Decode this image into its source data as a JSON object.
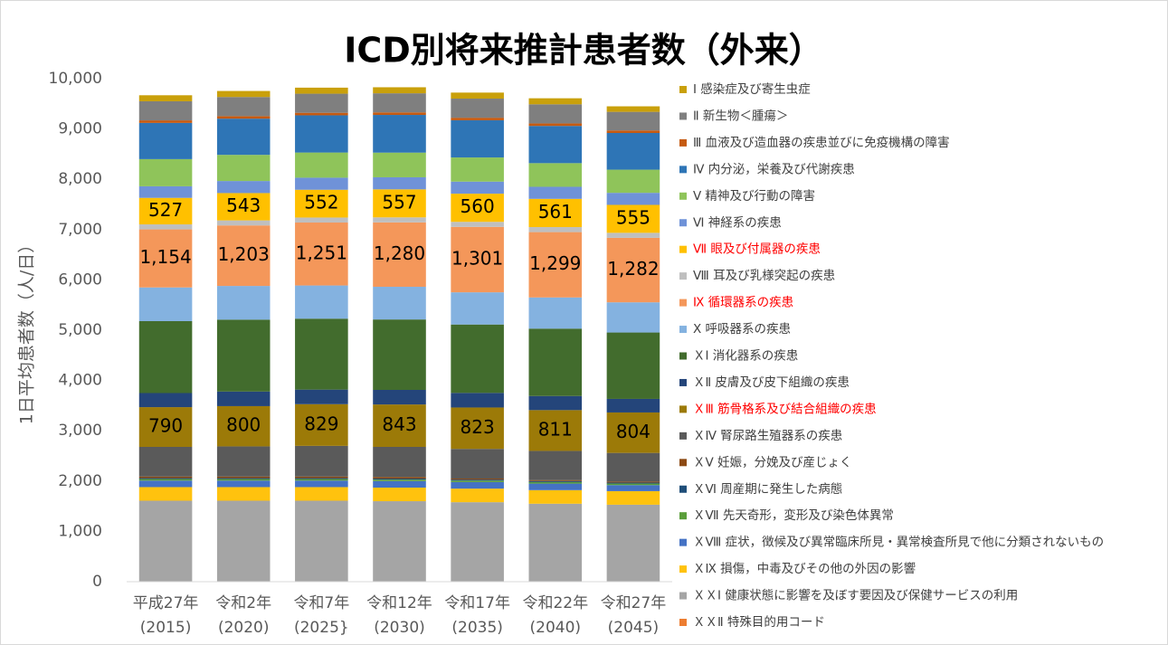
{
  "chart_data": {
    "type": "stacked_bar",
    "title": "ICD別将来推計患者数（外来）",
    "y_label": "1日平均患者数（人/日）",
    "categories": [
      [
        "平成27年",
        "(2015)"
      ],
      [
        "令和2年",
        "(2020)"
      ],
      [
        "令和7年",
        "(2025}"
      ],
      [
        "令和12年",
        "(2030)"
      ],
      [
        "令和17年",
        "(2035)"
      ],
      [
        "令和22年",
        "(2040)"
      ],
      [
        "令和27年",
        "(2045)"
      ]
    ],
    "ylim": [
      0,
      10000
    ],
    "yticks": [
      0,
      {
        "value": 1000,
        "label": "1,000"
      },
      {
        "value": 2000,
        "label": "2,000"
      },
      {
        "value": 3000,
        "label": "3,000"
      },
      {
        "value": 4000,
        "label": "4,000"
      },
      {
        "value": 5000,
        "label": "5,000"
      },
      {
        "value": 6000,
        "label": "6,000"
      },
      {
        "value": 7000,
        "label": "7,000"
      },
      {
        "value": 8000,
        "label": "8,000"
      },
      {
        "value": 9000,
        "label": "9,000"
      },
      {
        "value": 10000,
        "label": "10,000"
      }
    ],
    "grid": false,
    "legend": "right",
    "series": [
      {
        "name": "Ⅰ 感染症及び寄生虫症",
        "color": "#c9a00b",
        "values": [
          120,
          120,
          120,
          120,
          120,
          120,
          110
        ]
      },
      {
        "name": "Ⅱ 新生物＜腫瘍＞",
        "color": "#7f7f7f",
        "values": [
          380,
          380,
          380,
          380,
          380,
          380,
          370
        ]
      },
      {
        "name": "Ⅲ 血液及び造血器の疾患並びに免疫機構の障害",
        "color": "#c55a11",
        "values": [
          50,
          50,
          50,
          50,
          50,
          50,
          50
        ]
      },
      {
        "name": "Ⅳ 内分泌，栄養及び代謝疾患",
        "color": "#2e75b6",
        "values": [
          720,
          720,
          740,
          750,
          740,
          740,
          730
        ]
      },
      {
        "name": "Ⅴ 精神及び行動の障害",
        "color": "#8fc45a",
        "values": [
          540,
          520,
          500,
          490,
          480,
          470,
          460
        ]
      },
      {
        "name": "Ⅵ 神経系の疾患",
        "color": "#6f92d8",
        "values": [
          230,
          240,
          240,
          240,
          240,
          240,
          240
        ]
      },
      {
        "name": "Ⅶ 眼及び付属器の疾患",
        "color": "#ffc000",
        "legend_text_color": "#ff0000",
        "values": [
          527,
          543,
          552,
          557,
          560,
          561,
          555
        ]
      },
      {
        "name": "Ⅷ 耳及び乳様突起の疾患",
        "color": "#bfbfbf",
        "values": [
          100,
          100,
          100,
          100,
          100,
          100,
          100
        ]
      },
      {
        "name": "Ⅸ 循環器系の疾患",
        "color": "#f4975a",
        "legend_text_color": "#ff0000",
        "values": [
          1154,
          1203,
          1251,
          1280,
          1301,
          1299,
          1282
        ],
        "value_labels": [
          "1,154",
          "1,203",
          "1,251",
          "1,280",
          "1,301",
          "1,299",
          "1,282"
        ]
      },
      {
        "name": "Ⅹ 呼吸器系の疾患",
        "color": "#84b2e0",
        "values": [
          670,
          670,
          660,
          650,
          640,
          620,
          600
        ]
      },
      {
        "name": "ＸⅠ 消化器系の疾患",
        "color": "#426c2d",
        "values": [
          1430,
          1430,
          1410,
          1400,
          1360,
          1340,
          1320
        ]
      },
      {
        "name": "ＸⅡ 皮膚及び皮下組織の疾患",
        "color": "#24457a",
        "values": [
          280,
          290,
          290,
          290,
          290,
          280,
          270
        ]
      },
      {
        "name": "ＸⅢ 筋骨格系及び結合組織の疾患",
        "color": "#9c7a08",
        "legend_text_color": "#ff0000",
        "values": [
          790,
          800,
          829,
          843,
          823,
          811,
          804
        ]
      },
      {
        "name": "ＸⅣ 腎尿路生殖器系の疾患",
        "color": "#5a5a5a",
        "values": [
          590,
          600,
          610,
          600,
          590,
          580,
          570
        ]
      },
      {
        "name": "ＸⅤ 妊娠，分娩及び産じょく",
        "color": "#8c4a14",
        "values": [
          30,
          30,
          30,
          30,
          20,
          20,
          20
        ]
      },
      {
        "name": "ＸⅥ 周産期に発生した病態",
        "color": "#1f4e79",
        "values": [
          20,
          20,
          20,
          20,
          20,
          20,
          20
        ]
      },
      {
        "name": "ＸⅦ 先天奇形，変形及び染色体異常",
        "color": "#5a9e3a",
        "values": [
          30,
          30,
          30,
          30,
          30,
          30,
          30
        ]
      },
      {
        "name": "ＸⅧ 症状，徴候及び異常臨床所見・異常検査所見で他に分類されないもの",
        "color": "#4472c4",
        "values": [
          130,
          130,
          130,
          130,
          130,
          130,
          120
        ]
      },
      {
        "name": "ＸⅨ 損傷，中毒及びその他の外因の影響",
        "color": "#ffc20e",
        "values": [
          270,
          270,
          270,
          270,
          270,
          270,
          270
        ]
      },
      {
        "name": "ＸＸⅠ 健康状態に影響を及ぼす要因及び保健サービスの利用",
        "color": "#a5a5a5",
        "values": [
          1610,
          1610,
          1610,
          1600,
          1580,
          1550,
          1530
        ]
      },
      {
        "name": "ＸＸⅡ 特殊目的用コード",
        "color": "#ed7d31",
        "values": [
          0,
          0,
          0,
          0,
          0,
          0,
          0
        ]
      }
    ]
  }
}
